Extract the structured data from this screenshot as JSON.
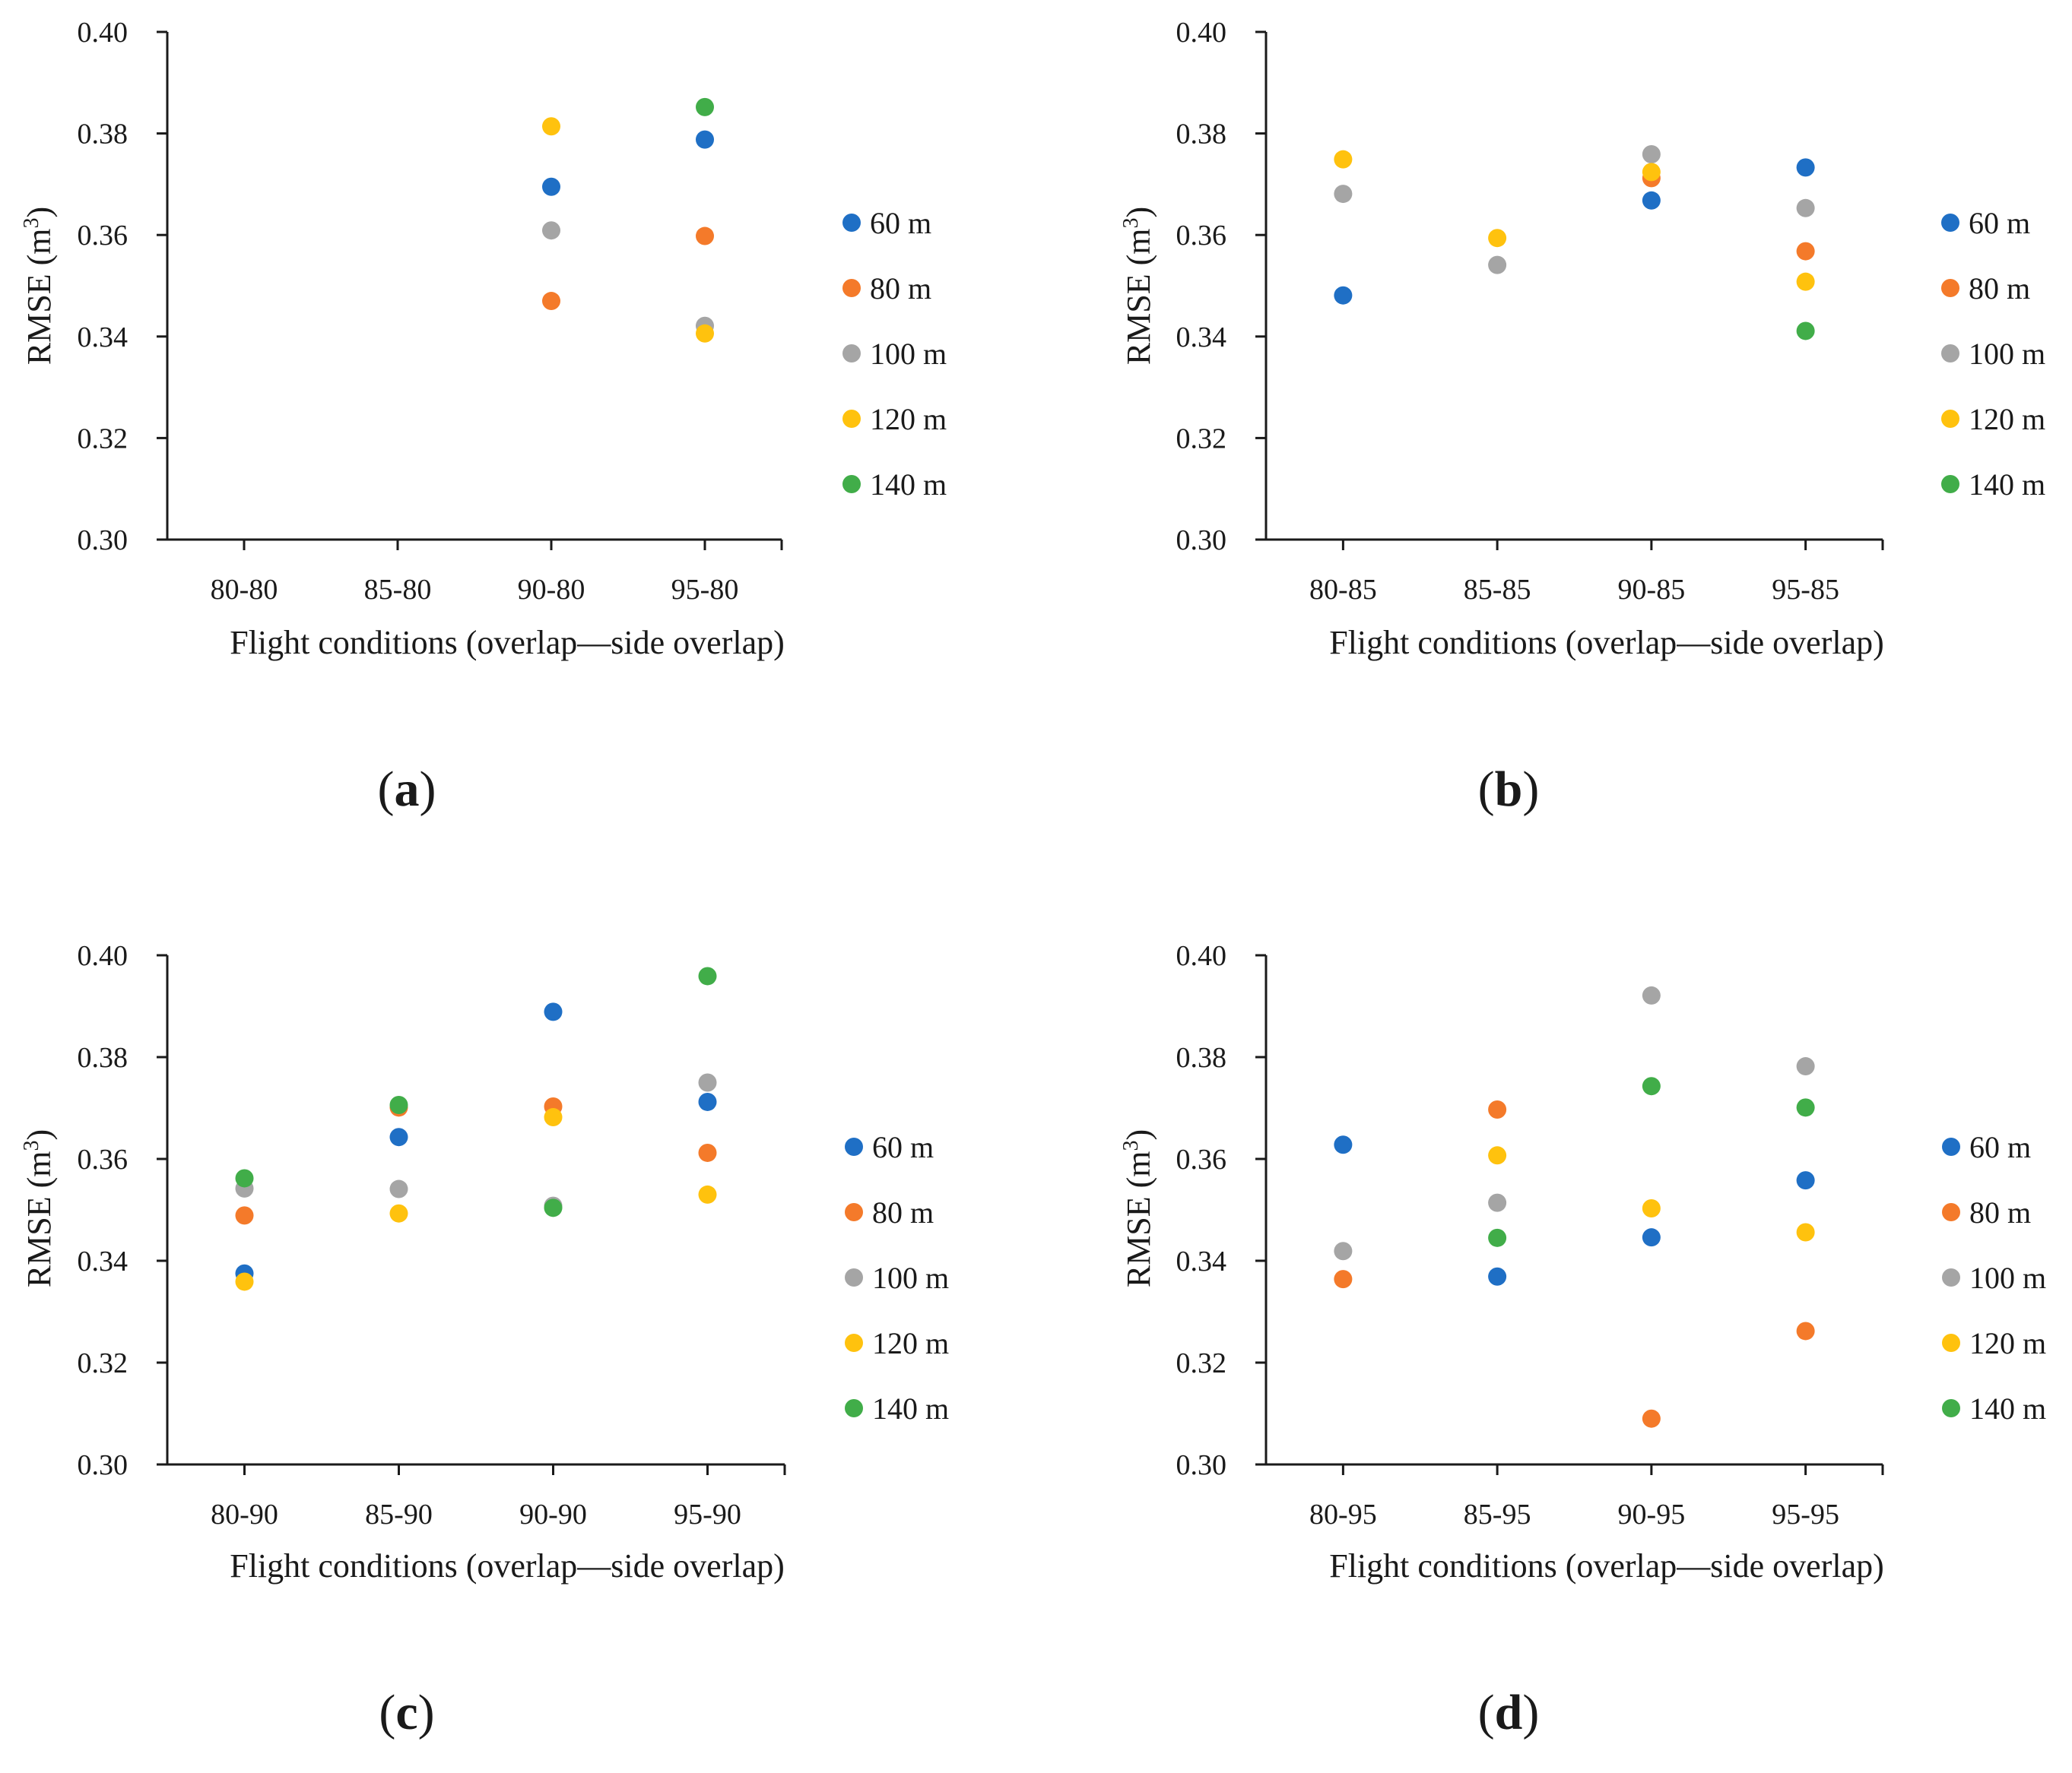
{
  "figure": {
    "panels": [
      "a",
      "b",
      "c",
      "d"
    ]
  },
  "colors": {
    "60 m": "#1f6fc5",
    "80 m": "#f47a2a",
    "100 m": "#a5a5a5",
    "120 m": "#ffc20e",
    "140 m": "#41ad49",
    "axis": "#1a1a1a"
  },
  "chart_data": [
    {
      "panel": "a",
      "type": "scatter",
      "title": "",
      "caption_open": "(",
      "caption_letter": "a",
      "caption_close": ")",
      "xlabel": "Flight conditions (overlap—side overlap)",
      "ylabel_main": "RMSE (m",
      "ylabel_sup": "3",
      "ylabel_close": ")",
      "ylim": [
        0.3,
        0.4
      ],
      "yticks": [
        "0.30",
        "0.32",
        "0.34",
        "0.36",
        "0.38",
        "0.40"
      ],
      "categories": [
        "80-80",
        "85-80",
        "90-80",
        "95-80"
      ],
      "series": [
        {
          "name": "60 m",
          "values": [
            null,
            null,
            0.3695,
            0.3788
          ]
        },
        {
          "name": "80 m",
          "values": [
            null,
            null,
            0.347,
            0.3598
          ]
        },
        {
          "name": "100 m",
          "values": [
            null,
            null,
            0.3609,
            0.3421
          ]
        },
        {
          "name": "120 m",
          "values": [
            null,
            null,
            0.3814,
            0.3406
          ]
        },
        {
          "name": "140 m",
          "values": [
            null,
            null,
            null,
            0.3852
          ]
        }
      ]
    },
    {
      "panel": "b",
      "type": "scatter",
      "title": "",
      "caption_open": "(",
      "caption_letter": "b",
      "caption_close": ")",
      "xlabel": "Flight conditions (overlap—side overlap)",
      "ylabel_main": "RMSE (m",
      "ylabel_sup": "3",
      "ylabel_close": ")",
      "ylim": [
        0.3,
        0.4
      ],
      "yticks": [
        "0.30",
        "0.32",
        "0.34",
        "0.36",
        "0.38",
        "0.40"
      ],
      "categories": [
        "80-85",
        "85-85",
        "90-85",
        "95-85"
      ],
      "series": [
        {
          "name": "60 m",
          "values": [
            0.3481,
            null,
            0.3668,
            0.3733
          ]
        },
        {
          "name": "80 m",
          "values": [
            null,
            null,
            0.3712,
            0.3568
          ]
        },
        {
          "name": "100 m",
          "values": [
            0.3681,
            0.3541,
            0.3759,
            0.3653
          ]
        },
        {
          "name": "120 m",
          "values": [
            0.3749,
            0.3594,
            0.3724,
            0.3508
          ]
        },
        {
          "name": "140 m",
          "values": [
            null,
            null,
            null,
            0.3411
          ]
        }
      ]
    },
    {
      "panel": "c",
      "type": "scatter",
      "title": "",
      "caption_open": "(",
      "caption_letter": "c",
      "caption_close": ")",
      "xlabel": "Flight conditions (overlap—side overlap)",
      "ylabel_main": "RMSE (m",
      "ylabel_sup": "3",
      "ylabel_close": ")",
      "ylim": [
        0.3,
        0.4
      ],
      "yticks": [
        "0.30",
        "0.32",
        "0.34",
        "0.36",
        "0.38",
        "0.40"
      ],
      "categories": [
        "80-90",
        "85-90",
        "90-90",
        "95-90"
      ],
      "series": [
        {
          "name": "60 m",
          "values": [
            0.3375,
            0.3643,
            0.3889,
            0.3712
          ]
        },
        {
          "name": "80 m",
          "values": [
            0.3489,
            0.3701,
            0.3703,
            0.3612
          ]
        },
        {
          "name": "100 m",
          "values": [
            0.3542,
            0.3541,
            0.3508,
            0.375
          ]
        },
        {
          "name": "120 m",
          "values": [
            0.3359,
            0.3493,
            0.3682,
            0.353
          ]
        },
        {
          "name": "140 m",
          "values": [
            0.3562,
            0.3706,
            0.3504,
            0.3959
          ]
        }
      ]
    },
    {
      "panel": "d",
      "type": "scatter",
      "title": "",
      "caption_open": "(",
      "caption_letter": "d",
      "caption_close": ")",
      "xlabel": "Flight conditions (overlap—side overlap)",
      "ylabel_main": "RMSE (m",
      "ylabel_sup": "3",
      "ylabel_close": ")",
      "ylim": [
        0.3,
        0.4
      ],
      "yticks": [
        "0.30",
        "0.32",
        "0.34",
        "0.36",
        "0.38",
        "0.40"
      ],
      "categories": [
        "80-95",
        "85-95",
        "90-95",
        "95-95"
      ],
      "series": [
        {
          "name": "60 m",
          "values": [
            0.3628,
            0.3369,
            0.3446,
            0.3558
          ]
        },
        {
          "name": "80 m",
          "values": [
            0.3364,
            0.3697,
            0.309,
            0.3262
          ]
        },
        {
          "name": "100 m",
          "values": [
            0.3419,
            0.3514,
            0.3921,
            0.3782
          ]
        },
        {
          "name": "120 m",
          "values": [
            null,
            0.3607,
            0.3503,
            0.3456
          ]
        },
        {
          "name": "140 m",
          "values": [
            null,
            0.3445,
            0.3743,
            0.3701
          ]
        }
      ]
    }
  ]
}
